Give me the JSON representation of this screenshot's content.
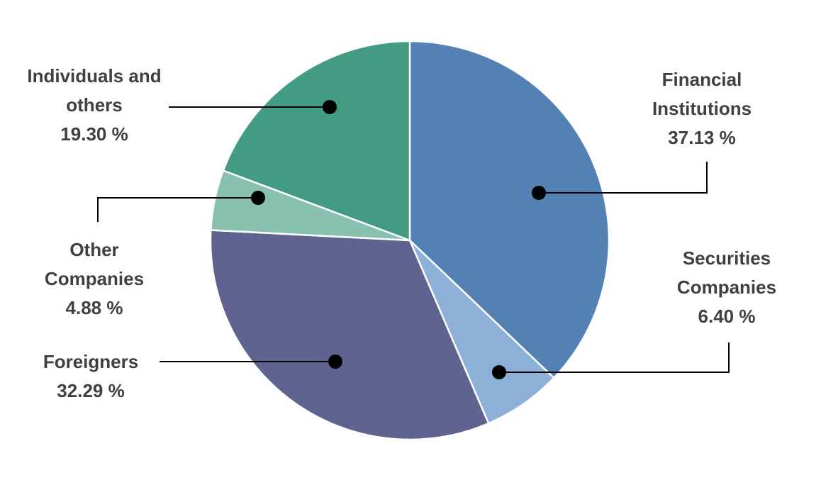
{
  "chart_data": {
    "type": "pie",
    "categories": [
      "Financial Institutions",
      "Securities Companies",
      "Foreigners",
      "Other Companies",
      "Individuals and others"
    ],
    "values": [
      37.13,
      6.4,
      32.29,
      4.88,
      19.3
    ],
    "value_labels": [
      "37.13 %",
      "6.40 %",
      "32.29 %",
      "4.88 %",
      "19.30 %"
    ],
    "colors": [
      "#5381b3",
      "#8db0d8",
      "#5f6390",
      "#88c1b0",
      "#439b83"
    ]
  }
}
